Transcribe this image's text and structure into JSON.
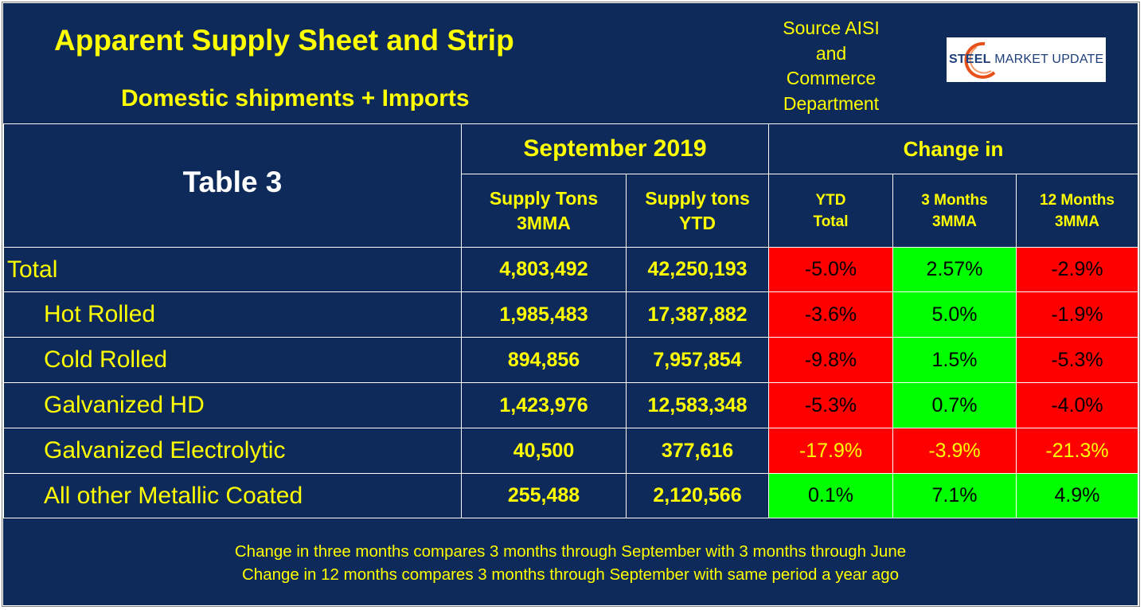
{
  "header": {
    "title": "Apparent Supply Sheet and Strip",
    "subtitle": "Domestic shipments + Imports",
    "source_lines": [
      "Source AISI",
      "and",
      "Commerce",
      "Department"
    ],
    "logo": {
      "bold": "STEEL",
      "rest": " MARKET UPDATE",
      "arc_color": "#e8501a"
    }
  },
  "table": {
    "title": "Table 3",
    "group_month": "September 2019",
    "group_change": "Change in",
    "columns": [
      {
        "line1": "Supply Tons",
        "line2": "3MMA"
      },
      {
        "line1": "Supply tons",
        "line2": "YTD"
      },
      {
        "line1": "YTD",
        "line2": "Total"
      },
      {
        "line1": "3 Months",
        "line2": "3MMA"
      },
      {
        "line1": "12 Months",
        "line2": "3MMA"
      }
    ],
    "rows": [
      {
        "label": "Total",
        "mma": "4,803,492",
        "ytd": "42,250,193",
        "chg_ytd": "-5.0%",
        "chg_3m": "2.57%",
        "chg_12m": "-2.9%"
      },
      {
        "label": "Hot Rolled",
        "mma": "1,985,483",
        "ytd": "17,387,882",
        "chg_ytd": "-3.6%",
        "chg_3m": "5.0%",
        "chg_12m": "-1.9%"
      },
      {
        "label": "Cold Rolled",
        "mma": "894,856",
        "ytd": "7,957,854",
        "chg_ytd": "-9.8%",
        "chg_3m": "1.5%",
        "chg_12m": "-5.3%"
      },
      {
        "label": "Galvanized HD",
        "mma": "1,423,976",
        "ytd": "12,583,348",
        "chg_ytd": "-5.3%",
        "chg_3m": "0.7%",
        "chg_12m": "-4.0%"
      },
      {
        "label": "Galvanized Electrolytic",
        "mma": "40,500",
        "ytd": "377,616",
        "chg_ytd": "-17.9%",
        "chg_3m": "-3.9%",
        "chg_12m": "-21.3%"
      },
      {
        "label": "All other Metallic Coated",
        "mma": "255,488",
        "ytd": "2,120,566",
        "chg_ytd": "0.1%",
        "chg_3m": "7.1%",
        "chg_12m": "4.9%"
      }
    ],
    "colors": {
      "negative": "#ff0000",
      "positive": "#00ff00",
      "background": "#0e2a5a",
      "text": "#ffff00"
    }
  },
  "footer": {
    "line1": "Change in three months compares 3 months through September with 3 months through June",
    "line2": "Change in 12 months compares 3 months through September with same period a year ago"
  }
}
